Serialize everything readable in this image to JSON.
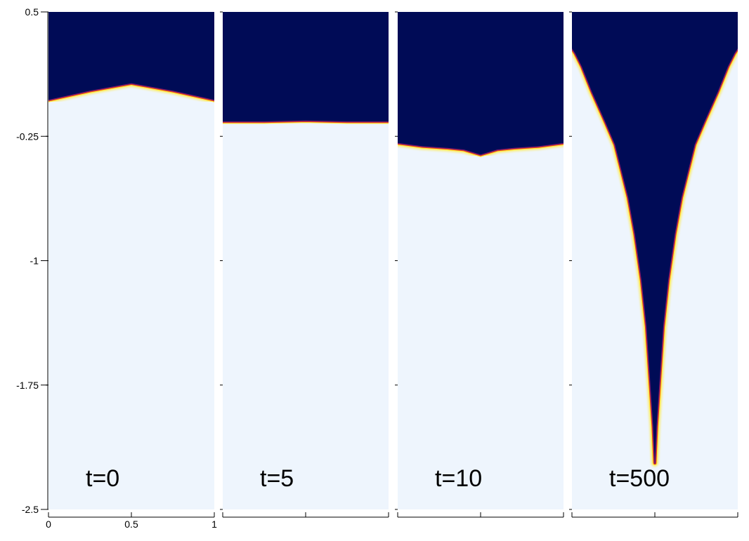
{
  "chart_data": {
    "type": "heatmap",
    "title": "",
    "xlabel": "",
    "ylabel": "",
    "xlim": [
      0,
      1
    ],
    "ylim": [
      -2.5,
      0.5
    ],
    "xticks": [
      0,
      0.5,
      1
    ],
    "xtick_labels": [
      "0",
      "0.5",
      "1"
    ],
    "yticks": [
      0.5,
      -0.25,
      -1,
      -1.75,
      -2.5
    ],
    "ytick_labels": [
      "0.5",
      "-0.25",
      "-1",
      "-1.75",
      "-2.5"
    ],
    "colors": {
      "upper_fluid": "#000b56",
      "lower_fluid": "#eef5fd",
      "interface_mid": "#7a1a6e",
      "interface_hot": "#e8401c",
      "interface_bright": "#ffe83a"
    },
    "panels": [
      {
        "label": "t=0",
        "interface_x": [
          0,
          0.25,
          0.5,
          0.75,
          1
        ],
        "interface_y": [
          -0.03,
          0.025,
          0.07,
          0.025,
          -0.03
        ]
      },
      {
        "label": "t=5",
        "interface_x": [
          0,
          0.25,
          0.5,
          0.75,
          1
        ],
        "interface_y": [
          -0.16,
          -0.16,
          -0.155,
          -0.16,
          -0.16
        ]
      },
      {
        "label": "t=10",
        "interface_x": [
          0,
          0.15,
          0.3,
          0.4,
          0.5,
          0.6,
          0.7,
          0.85,
          1
        ],
        "interface_y": [
          -0.29,
          -0.31,
          -0.32,
          -0.33,
          -0.36,
          -0.33,
          -0.32,
          -0.31,
          -0.29
        ]
      },
      {
        "label": "t=500",
        "interface_x": [
          0,
          0.02,
          0.06,
          0.12,
          0.2,
          0.26,
          0.3,
          0.34,
          0.38,
          0.42,
          0.45,
          0.47,
          0.49,
          0.5,
          0.51,
          0.53,
          0.55,
          0.58,
          0.62,
          0.66,
          0.7,
          0.74,
          0.8,
          0.88,
          0.94,
          0.98,
          1
        ],
        "interface_y": [
          0.28,
          0.25,
          0.17,
          0.02,
          -0.16,
          -0.3,
          -0.46,
          -0.62,
          -0.84,
          -1.12,
          -1.4,
          -1.7,
          -2.0,
          -2.22,
          -2.0,
          -1.7,
          -1.4,
          -1.12,
          -0.84,
          -0.62,
          -0.46,
          -0.3,
          -0.16,
          0.02,
          0.17,
          0.25,
          0.28
        ]
      }
    ]
  }
}
